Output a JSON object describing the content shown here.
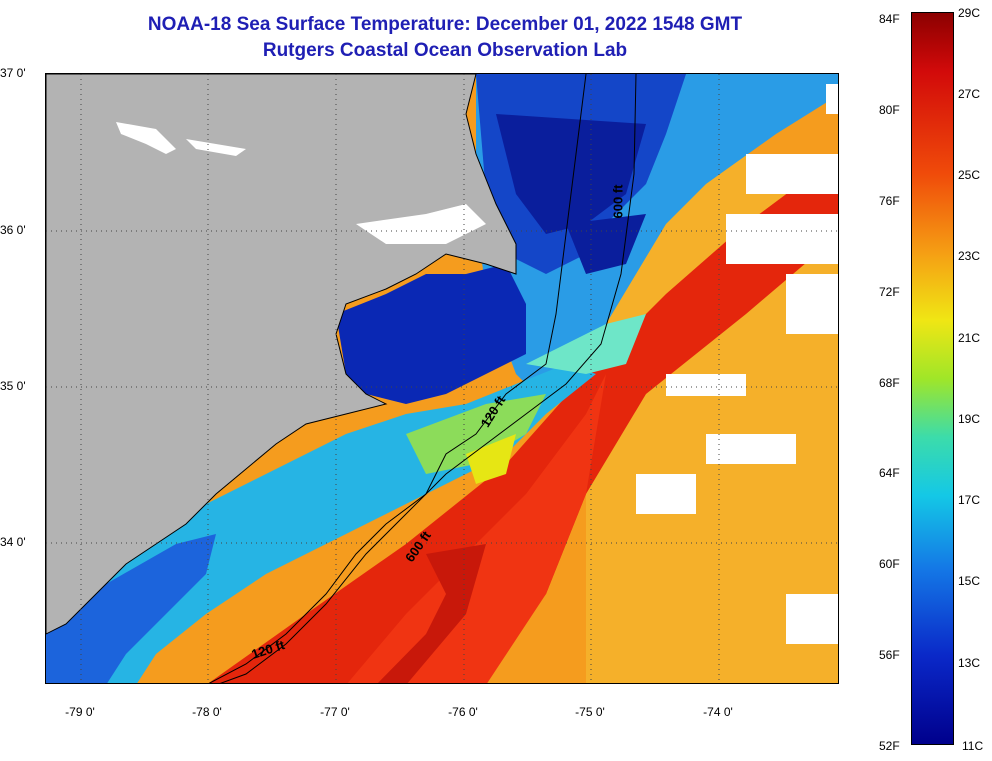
{
  "title": "NOAA-18 Sea Surface Temperature:  December 01, 2022 1548 GMT",
  "subtitle": "Rutgers Coastal Ocean Observation Lab",
  "lat_labels": [
    "37 0'",
    "36 0'",
    "35 0'",
    "34 0'"
  ],
  "lon_labels": [
    "-79 0'",
    "-78 0'",
    "-77 0'",
    "-76 0'",
    "-75 0'",
    "-74 0'"
  ],
  "isobath_labels": [
    "600 ft",
    "120 ft",
    "600 ft",
    "120 ft"
  ],
  "fahrenheit_scale": [
    "84F",
    "80F",
    "76F",
    "72F",
    "68F",
    "64F",
    "60F",
    "56F",
    "52F"
  ],
  "celsius_scale": [
    "29C",
    "27C",
    "25C",
    "23C",
    "21C",
    "19C",
    "17C",
    "15C",
    "13C",
    "11C"
  ],
  "colors": {
    "land": "#b3b3b3",
    "title": "#1f1fb4",
    "cold": "#00008c",
    "warm": "#dc1e0a",
    "cloud": "#ffffff"
  }
}
